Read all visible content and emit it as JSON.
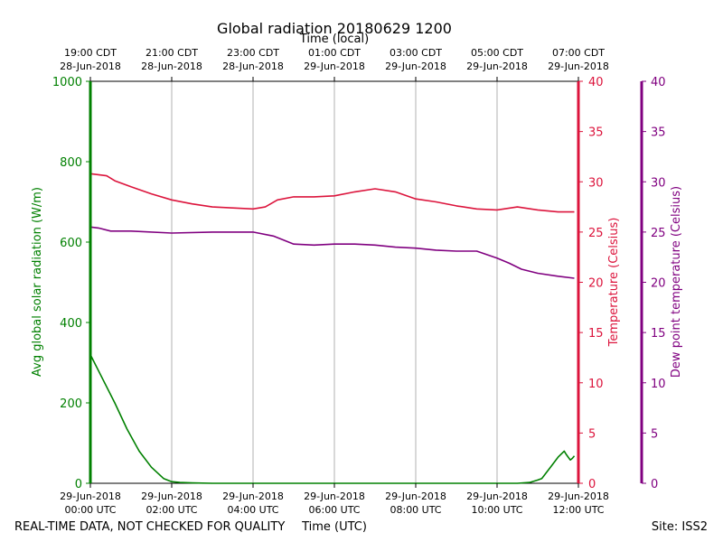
{
  "title": "Global radiation 20180629 1200",
  "top_axis_label": "Time (local)",
  "bottom_axis_label": "Time (UTC)",
  "footer_left": "REAL-TIME DATA, NOT CHECKED FOR QUALITY",
  "footer_right": "Site: ISS2",
  "chart_data": {
    "type": "line",
    "title": "Global radiation 20180629 1200",
    "x_hours_utc_range": [
      0,
      12
    ],
    "x_ticks_utc": [
      {
        "hour": 0,
        "date": "29-Jun-2018",
        "time": "00:00 UTC"
      },
      {
        "hour": 2,
        "date": "29-Jun-2018",
        "time": "02:00 UTC"
      },
      {
        "hour": 4,
        "date": "29-Jun-2018",
        "time": "04:00 UTC"
      },
      {
        "hour": 6,
        "date": "29-Jun-2018",
        "time": "06:00 UTC"
      },
      {
        "hour": 8,
        "date": "29-Jun-2018",
        "time": "08:00 UTC"
      },
      {
        "hour": 10,
        "date": "29-Jun-2018",
        "time": "10:00 UTC"
      },
      {
        "hour": 12,
        "date": "29-Jun-2018",
        "time": "12:00 UTC"
      }
    ],
    "x_ticks_local": [
      {
        "hour": 0,
        "time": "19:00 CDT",
        "date": "28-Jun-2018"
      },
      {
        "hour": 2,
        "time": "21:00 CDT",
        "date": "28-Jun-2018"
      },
      {
        "hour": 4,
        "time": "23:00 CDT",
        "date": "28-Jun-2018"
      },
      {
        "hour": 6,
        "time": "01:00 CDT",
        "date": "29-Jun-2018"
      },
      {
        "hour": 8,
        "time": "03:00 CDT",
        "date": "29-Jun-2018"
      },
      {
        "hour": 10,
        "time": "05:00 CDT",
        "date": "29-Jun-2018"
      },
      {
        "hour": 12,
        "time": "07:00 CDT",
        "date": "29-Jun-2018"
      }
    ],
    "grid_x": true,
    "axes": {
      "radiation": {
        "label": "Avg global solar radiation (W/m)",
        "range": [
          0,
          1000
        ],
        "ticks": [
          0,
          200,
          400,
          600,
          800,
          1000
        ],
        "color": "#008000"
      },
      "temperature": {
        "label": "Temperature (Celsius)",
        "range": [
          0,
          40
        ],
        "ticks": [
          0,
          5,
          10,
          15,
          20,
          25,
          30,
          35,
          40
        ],
        "color": "#dc143c"
      },
      "dewpoint": {
        "label": "Dew point temperature (Celsius)",
        "range": [
          0,
          40
        ],
        "ticks": [
          0,
          5,
          10,
          15,
          20,
          25,
          30,
          35,
          40
        ],
        "color": "#800080"
      }
    },
    "series": [
      {
        "name": "Avg global solar radiation",
        "axis": "radiation",
        "color": "#008000",
        "x": [
          0,
          0.3,
          0.6,
          0.9,
          1.2,
          1.5,
          1.8,
          2.0,
          2.2,
          2.5,
          3,
          4,
          5,
          6,
          7,
          8,
          9,
          10,
          10.5,
          10.8,
          11.0,
          11.1,
          11.2,
          11.35,
          11.5,
          11.65,
          11.7,
          11.8,
          11.85,
          11.9
        ],
        "values": [
          320,
          260,
          200,
          135,
          80,
          40,
          12,
          4,
          2,
          1,
          0,
          0,
          0,
          0,
          0,
          0,
          0,
          0,
          0,
          2,
          8,
          12,
          25,
          45,
          65,
          80,
          72,
          58,
          62,
          68
        ]
      },
      {
        "name": "Temperature",
        "axis": "temperature",
        "color": "#dc143c",
        "x": [
          0,
          0.4,
          0.6,
          1.0,
          1.5,
          2.0,
          2.5,
          3.0,
          3.5,
          4.0,
          4.3,
          4.6,
          5.0,
          5.5,
          6.0,
          6.5,
          7.0,
          7.5,
          8.0,
          8.5,
          9.0,
          9.5,
          10.0,
          10.5,
          11.0,
          11.5,
          11.9
        ],
        "values": [
          30.8,
          30.6,
          30.1,
          29.5,
          28.8,
          28.2,
          27.8,
          27.5,
          27.4,
          27.3,
          27.5,
          28.2,
          28.5,
          28.5,
          28.6,
          29.0,
          29.3,
          29.0,
          28.3,
          28.0,
          27.6,
          27.3,
          27.2,
          27.5,
          27.2,
          27.0,
          27.0
        ]
      },
      {
        "name": "Dew point temperature",
        "axis": "dewpoint",
        "color": "#800080",
        "x": [
          0,
          0.2,
          0.5,
          1.0,
          2.0,
          3.0,
          4.0,
          4.5,
          5.0,
          5.5,
          6.0,
          6.5,
          7.0,
          7.5,
          8.0,
          8.5,
          9.0,
          9.5,
          10.0,
          10.3,
          10.6,
          11.0,
          11.5,
          11.9
        ],
        "values": [
          25.5,
          25.4,
          25.1,
          25.1,
          24.9,
          25.0,
          25.0,
          24.6,
          23.8,
          23.7,
          23.8,
          23.8,
          23.7,
          23.5,
          23.4,
          23.2,
          23.1,
          23.1,
          22.4,
          21.9,
          21.3,
          20.9,
          20.6,
          20.4
        ]
      }
    ]
  }
}
